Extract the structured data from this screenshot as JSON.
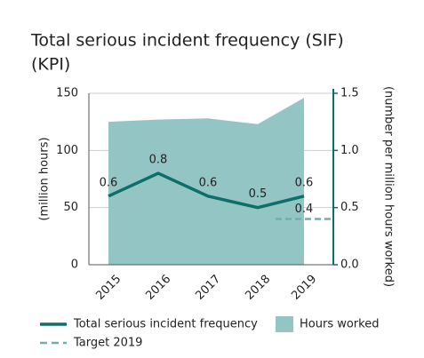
{
  "chart_data": {
    "type": "line-area",
    "title": [
      "Total serious incident frequency (SIF)",
      "(KPI)"
    ],
    "categories": [
      "2015",
      "2016",
      "2017",
      "2018",
      "2019"
    ],
    "series": [
      {
        "name": "Hours worked",
        "type": "area",
        "color": "#93c5c5",
        "values": [
          125,
          127,
          128,
          123,
          146
        ]
      },
      {
        "name": "Total serious incident frequency",
        "type": "line",
        "axis": "y2",
        "color": "#0e6e69",
        "values": [
          0.6,
          0.8,
          0.6,
          0.5,
          0.6
        ]
      }
    ],
    "target": {
      "name": "Target 2019",
      "value": 0.4,
      "color": "#6fb0ae"
    },
    "ylabel": "(million hours)",
    "y2label": "(number per million hours worked)",
    "ylim": [
      0,
      150
    ],
    "yticks": [
      0,
      50,
      100,
      150
    ],
    "y2lim": [
      0,
      1.5
    ],
    "y2ticks": [
      {
        "value": 0,
        "label": "0.0"
      },
      0.5,
      {
        "value": 1,
        "label": "1.0"
      },
      1.5
    ],
    "grid": true
  }
}
